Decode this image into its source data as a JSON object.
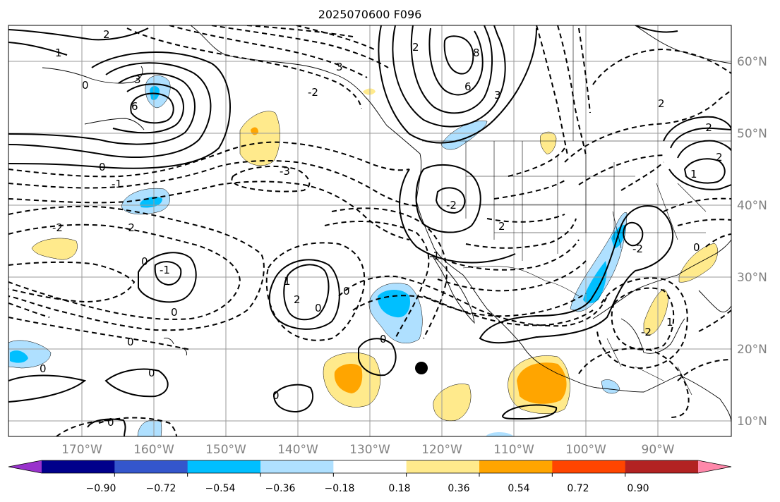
{
  "title": "2025070600 F096",
  "map": {
    "lon_ticks": [
      "170°W",
      "160°W",
      "150°W",
      "140°W",
      "130°W",
      "120°W",
      "110°W",
      "100°W",
      "90°W"
    ],
    "lat_ticks": [
      "60°N",
      "50°N",
      "40°N",
      "30°N",
      "20°N",
      "10°N"
    ],
    "grid": true,
    "storm_marker": {
      "lon": -122.3,
      "lat": 17.5
    }
  },
  "contour_labels": [
    {
      "text": "2"
    },
    {
      "text": "1"
    },
    {
      "text": "0"
    },
    {
      "text": "3"
    },
    {
      "text": "6"
    },
    {
      "text": "0"
    },
    {
      "text": "-1"
    },
    {
      "text": "-2"
    },
    {
      "text": "-3"
    },
    {
      "text": "-2"
    },
    {
      "text": "3"
    },
    {
      "text": "8"
    },
    {
      "text": "6"
    },
    {
      "text": "3"
    },
    {
      "text": "2"
    },
    {
      "text": "-2"
    },
    {
      "text": "2"
    },
    {
      "text": "0"
    },
    {
      "text": "-1"
    },
    {
      "text": "1"
    },
    {
      "text": "-2"
    },
    {
      "text": "2"
    },
    {
      "text": "0"
    },
    {
      "text": "-1"
    },
    {
      "text": "0"
    },
    {
      "text": "-2"
    },
    {
      "text": "0"
    },
    {
      "text": "0"
    },
    {
      "text": "0"
    },
    {
      "text": "0"
    },
    {
      "text": "0"
    },
    {
      "text": "0"
    },
    {
      "text": "2"
    },
    {
      "text": "1"
    },
    {
      "text": "-2"
    },
    {
      "text": "-2"
    },
    {
      "text": "1"
    },
    {
      "text": "0"
    },
    {
      "text": "2"
    },
    {
      "text": "0"
    }
  ],
  "colorbar": {
    "colors": [
      "#9932cc",
      "#00008b",
      "#3456cc",
      "#00bfff",
      "#afe0ff",
      "#ffffff",
      "#ffea8c",
      "#ffa500",
      "#ff4500",
      "#b22222",
      "#ff88aa"
    ],
    "tick_labels": [
      "−0.90",
      "−0.72",
      "−0.54",
      "−0.36",
      "−0.18",
      "0.18",
      "0.36",
      "0.54",
      "0.72",
      "0.90"
    ]
  },
  "shading_colors": {
    "light_blue": "#afe0ff",
    "blue": "#00bfff",
    "light_yellow": "#ffea8c",
    "orange": "#ffa500"
  }
}
